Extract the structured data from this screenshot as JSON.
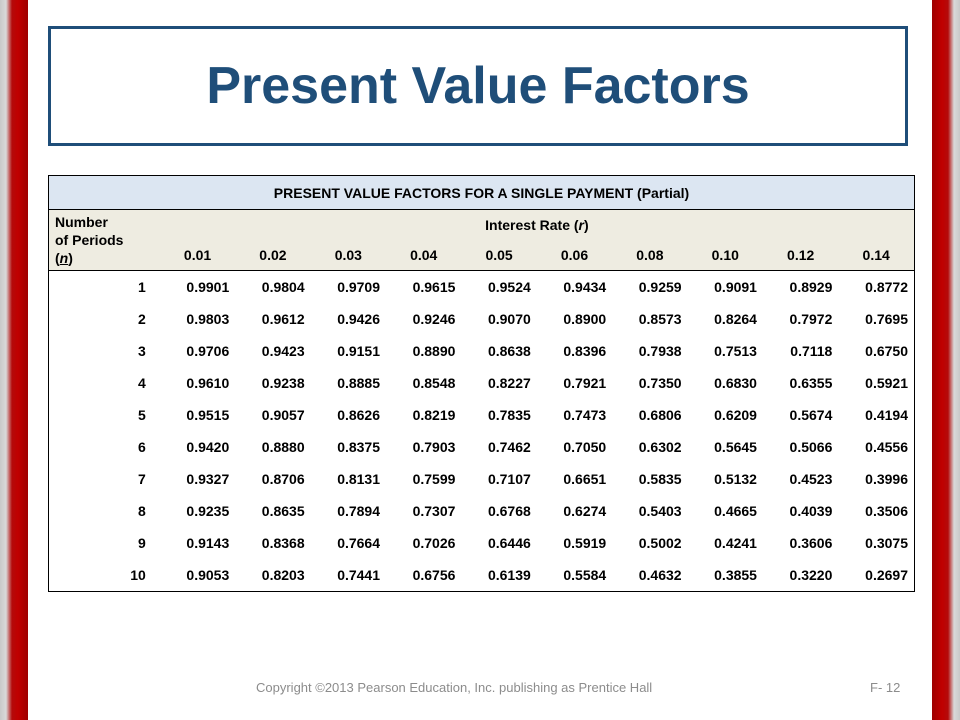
{
  "slide": {
    "title": "Present Value Factors",
    "footer": "Copyright ©2013 Pearson Education, Inc. publishing as Prentice Hall",
    "slide_number": "F- 12",
    "colors": {
      "title": "#1f4e79",
      "side_bars": "#c00000",
      "caption_bg": "#dce6f2",
      "header_bg": "#eeece1"
    }
  },
  "table": {
    "caption": "PRESENT VALUE FACTORS FOR A SINGLE PAYMENT (Partial)",
    "periods_header": {
      "line1": "Number",
      "line2": "of Periods",
      "symbol": "n"
    },
    "rate_header": {
      "label": "Interest Rate ",
      "symbol": "r"
    },
    "rates": [
      "0.01",
      "0.02",
      "0.03",
      "0.04",
      "0.05",
      "0.06",
      "0.08",
      "0.10",
      "0.12",
      "0.14"
    ],
    "rows": [
      {
        "n": "1",
        "values": [
          "0.9901",
          "0.9804",
          "0.9709",
          "0.9615",
          "0.9524",
          "0.9434",
          "0.9259",
          "0.9091",
          "0.8929",
          "0.8772"
        ]
      },
      {
        "n": "2",
        "values": [
          "0.9803",
          "0.9612",
          "0.9426",
          "0.9246",
          "0.9070",
          "0.8900",
          "0.8573",
          "0.8264",
          "0.7972",
          "0.7695"
        ]
      },
      {
        "n": "3",
        "values": [
          "0.9706",
          "0.9423",
          "0.9151",
          "0.8890",
          "0.8638",
          "0.8396",
          "0.7938",
          "0.7513",
          "0.7118",
          "0.6750"
        ]
      },
      {
        "n": "4",
        "values": [
          "0.9610",
          "0.9238",
          "0.8885",
          "0.8548",
          "0.8227",
          "0.7921",
          "0.7350",
          "0.6830",
          "0.6355",
          "0.5921"
        ]
      },
      {
        "n": "5",
        "values": [
          "0.9515",
          "0.9057",
          "0.8626",
          "0.8219",
          "0.7835",
          "0.7473",
          "0.6806",
          "0.6209",
          "0.5674",
          "0.4194"
        ]
      },
      {
        "n": "6",
        "values": [
          "0.9420",
          "0.8880",
          "0.8375",
          "0.7903",
          "0.7462",
          "0.7050",
          "0.6302",
          "0.5645",
          "0.5066",
          "0.4556"
        ]
      },
      {
        "n": "7",
        "values": [
          "0.9327",
          "0.8706",
          "0.8131",
          "0.7599",
          "0.7107",
          "0.6651",
          "0.5835",
          "0.5132",
          "0.4523",
          "0.3996"
        ]
      },
      {
        "n": "8",
        "values": [
          "0.9235",
          "0.8635",
          "0.7894",
          "0.7307",
          "0.6768",
          "0.6274",
          "0.5403",
          "0.4665",
          "0.4039",
          "0.3506"
        ]
      },
      {
        "n": "9",
        "values": [
          "0.9143",
          "0.8368",
          "0.7664",
          "0.7026",
          "0.6446",
          "0.5919",
          "0.5002",
          "0.4241",
          "0.3606",
          "0.3075"
        ]
      },
      {
        "n": "10",
        "values": [
          "0.9053",
          "0.8203",
          "0.7441",
          "0.6756",
          "0.6139",
          "0.5584",
          "0.4632",
          "0.3855",
          "0.3220",
          "0.2697"
        ]
      }
    ]
  }
}
